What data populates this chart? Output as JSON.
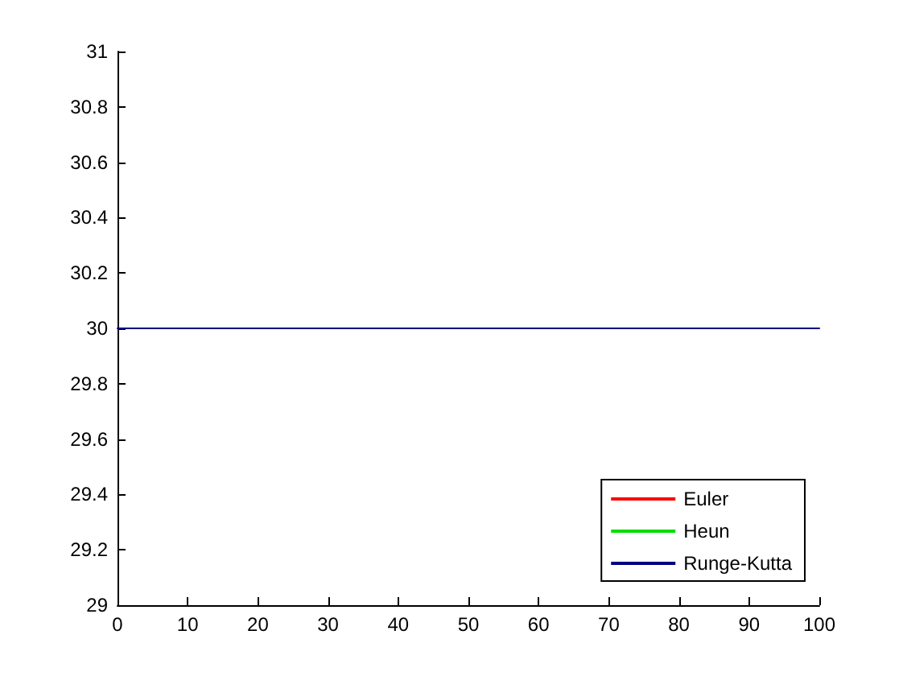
{
  "chart_data": {
    "type": "line",
    "x": [
      0,
      100
    ],
    "series": [
      {
        "name": "Euler",
        "color": "#ff0000",
        "values": [
          null,
          null
        ]
      },
      {
        "name": "Heun",
        "color": "#00dd00",
        "values": [
          null,
          null
        ]
      },
      {
        "name": "Runge-Kutta",
        "color": "#000080",
        "values": [
          30,
          30
        ]
      }
    ],
    "xlim": [
      0,
      100
    ],
    "xticks": [
      0,
      10,
      20,
      30,
      40,
      50,
      60,
      70,
      80,
      90,
      100
    ],
    "ylim": [
      29,
      31
    ],
    "yticks": [
      29,
      29.2,
      29.4,
      29.6,
      29.8,
      30,
      30.2,
      30.4,
      30.6,
      30.8,
      31
    ],
    "grid": false,
    "legend": "bottom right",
    "marker": "none",
    "line_style": "solid"
  }
}
